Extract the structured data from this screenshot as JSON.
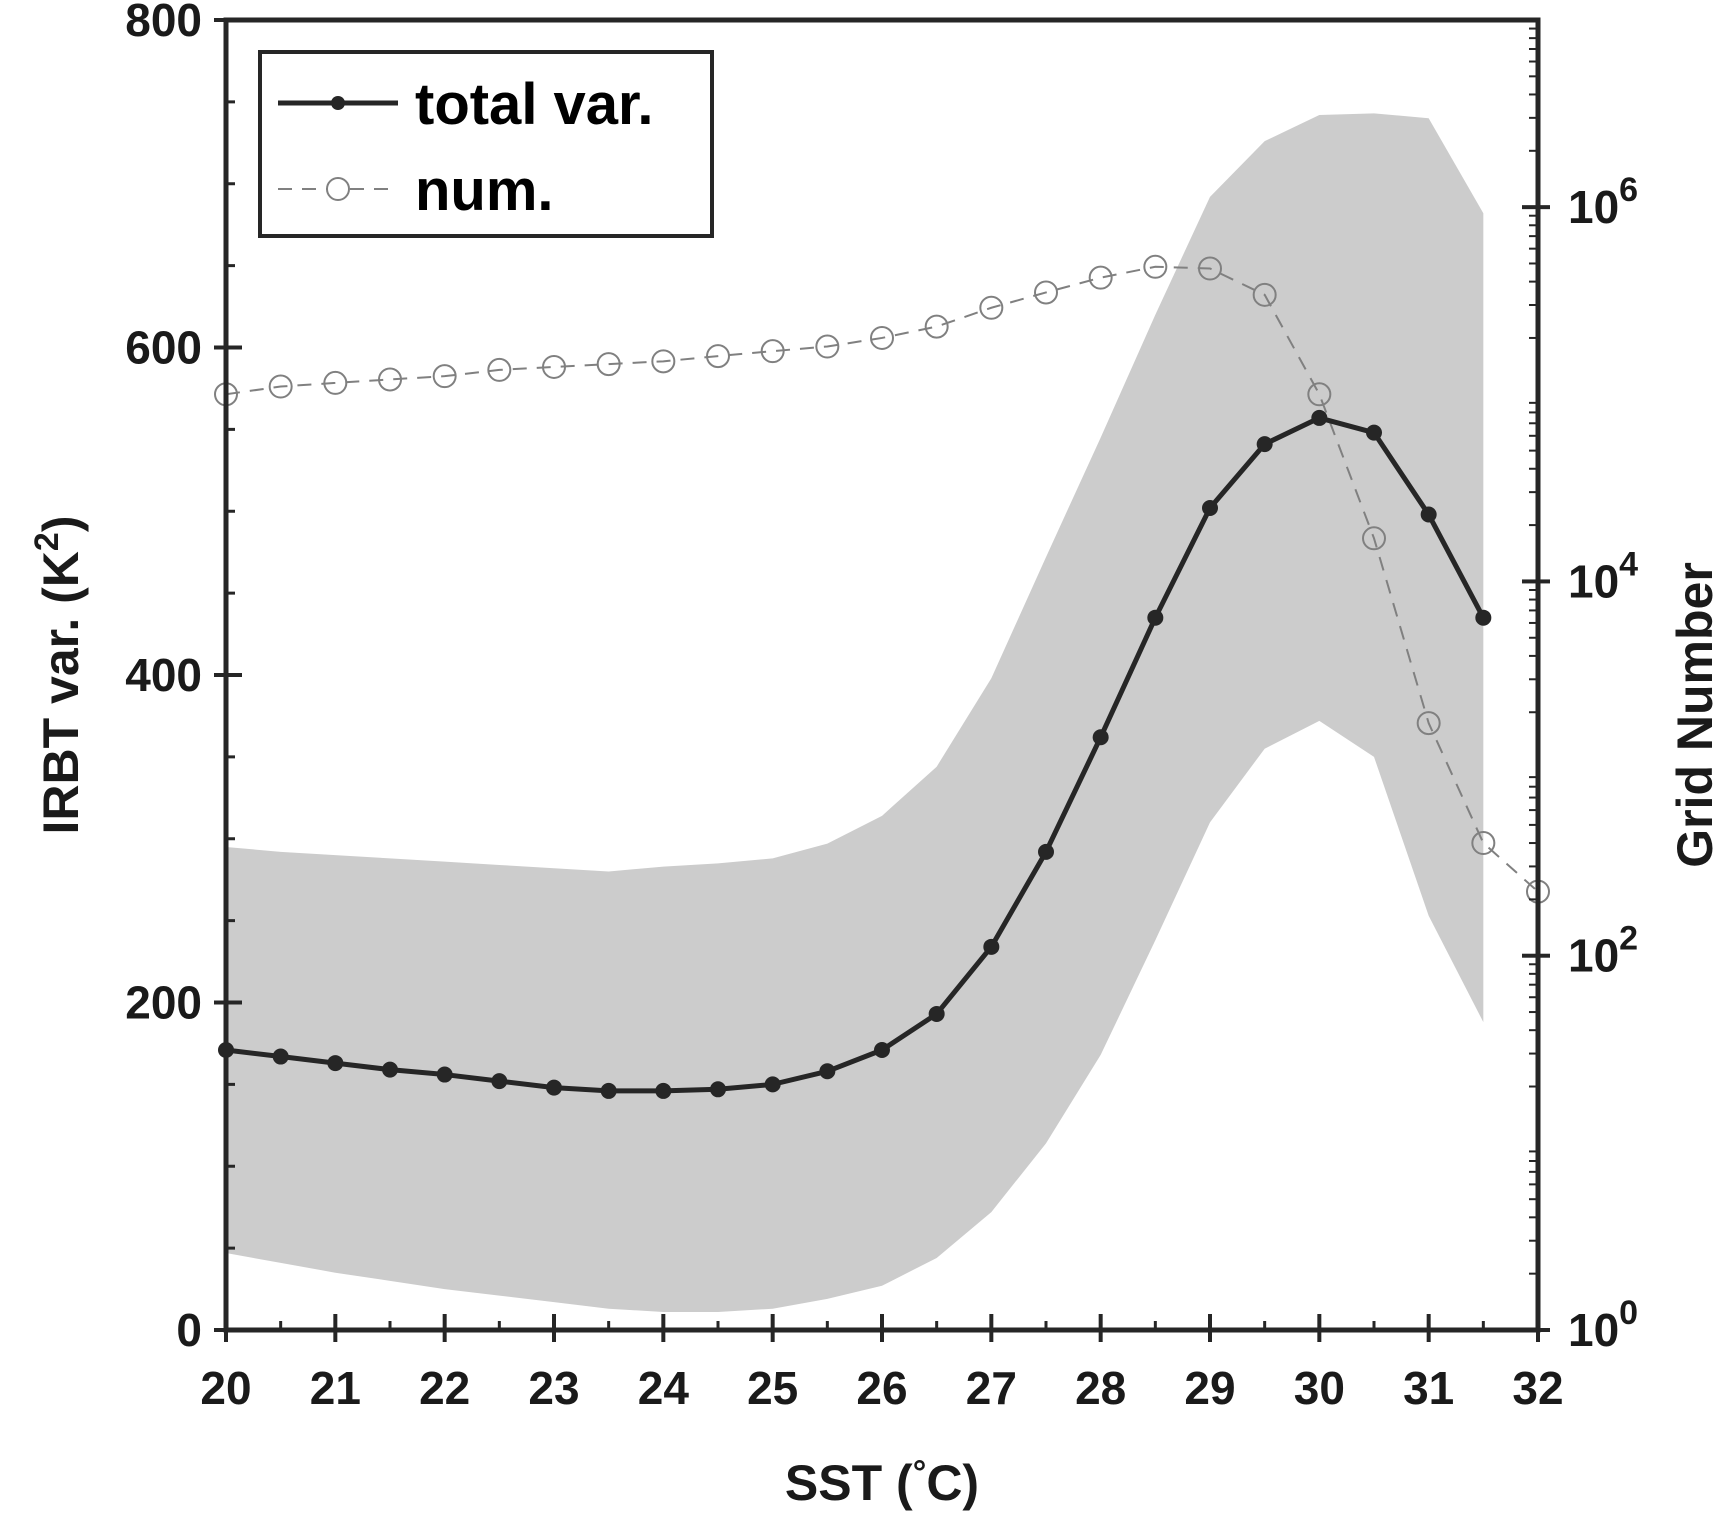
{
  "chart_data": {
    "type": "line",
    "xlabel": "SST (",
    "xlabel_unit": "C)",
    "xlabel_degree": "°",
    "ylabel_left": "IRBT var. (K",
    "ylabel_left_sup": "2",
    "ylabel_left_end": ")",
    "ylabel_right": "Grid Number",
    "xlim": [
      20,
      32
    ],
    "ylim_left": [
      0,
      800
    ],
    "ylim_right": [
      1,
      10000000
    ],
    "right_axis_scale": "log",
    "x_ticks": [
      "20",
      "21",
      "22",
      "23",
      "24",
      "25",
      "26",
      "27",
      "28",
      "29",
      "30",
      "31",
      "32"
    ],
    "y_ticks_left": [
      "0",
      "200",
      "400",
      "600",
      "800"
    ],
    "y_ticks_right": [
      {
        "value": 1,
        "base": "10",
        "exp": "0"
      },
      {
        "value": 100,
        "base": "10",
        "exp": "2"
      },
      {
        "value": 10000,
        "base": "10",
        "exp": "4"
      },
      {
        "value": 1000000,
        "base": "10",
        "exp": "6"
      }
    ],
    "legend_position": "top-left",
    "colors": {
      "total": "#262626",
      "num": "#808080",
      "band": "#cccccc",
      "axis": "#262626"
    },
    "series": [
      {
        "name": "total var.",
        "axis": "left",
        "style": "solid-filled-markers",
        "x": [
          20,
          20.5,
          21,
          21.5,
          22,
          22.5,
          23,
          23.5,
          24,
          24.5,
          25,
          25.5,
          26,
          26.5,
          27,
          27.5,
          28,
          28.5,
          29,
          29.5,
          30,
          30.5,
          31,
          31.5
        ],
        "values": [
          171,
          167,
          163,
          159,
          156,
          152,
          148,
          146,
          146,
          147,
          150,
          158,
          171,
          193,
          234,
          292,
          362,
          435,
          502,
          541,
          557,
          548,
          498,
          435
        ]
      },
      {
        "name": "num.",
        "axis": "right",
        "style": "dashed-open-markers",
        "x": [
          20,
          20.5,
          21,
          21.5,
          22,
          22.5,
          23,
          23.5,
          24,
          24.5,
          25,
          25.5,
          26,
          26.5,
          27,
          27.5,
          28,
          28.5,
          29,
          29.5,
          30,
          30.5,
          31,
          31.5,
          32
        ],
        "values": [
          100000,
          110000,
          115000,
          120000,
          125000,
          135000,
          140000,
          145000,
          150000,
          160000,
          170000,
          180000,
          200000,
          230000,
          290000,
          350000,
          420000,
          480000,
          470000,
          340000,
          100000,
          17000,
          1750,
          400,
          220
        ]
      }
    ],
    "band": {
      "x": [
        20,
        20.5,
        21,
        21.5,
        22,
        22.5,
        23,
        23.5,
        24,
        24.5,
        25,
        25.5,
        26,
        26.5,
        27,
        27.5,
        28,
        28.5,
        29,
        29.5,
        30,
        30.5,
        31,
        31.5
      ],
      "upper": [
        295,
        292,
        290,
        288,
        286,
        284,
        282,
        280,
        283,
        285,
        288,
        297,
        314,
        344,
        398,
        472,
        545,
        620,
        692,
        726,
        742,
        743,
        740,
        682
      ],
      "lower": [
        47,
        41,
        35,
        30,
        25,
        21,
        17,
        13,
        11,
        11,
        13,
        19,
        27,
        44,
        72,
        114,
        168,
        238,
        310,
        355,
        372,
        350,
        253,
        188
      ]
    }
  }
}
